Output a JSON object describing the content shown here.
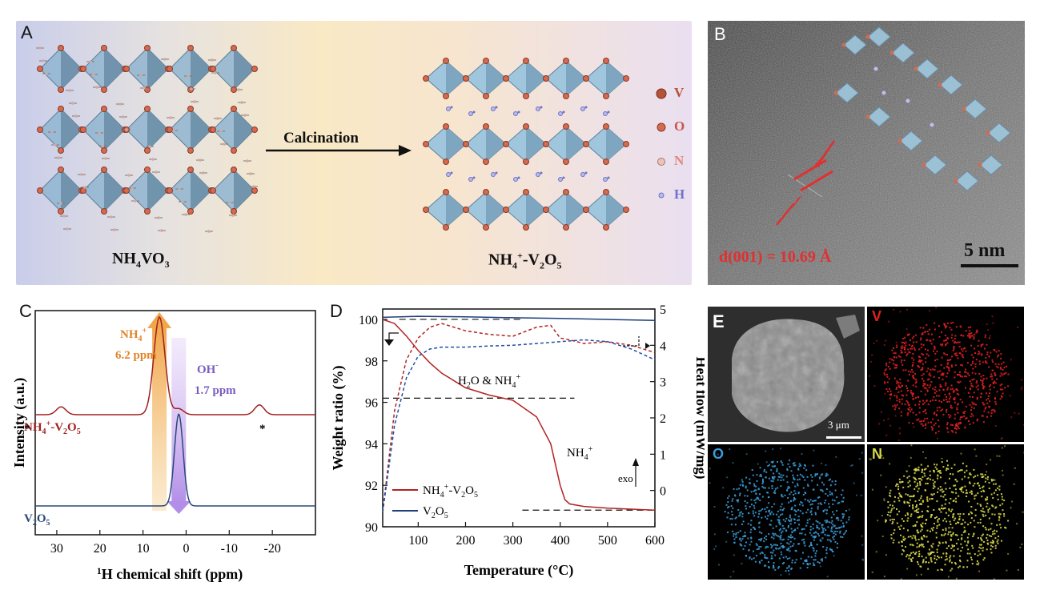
{
  "panel_labels": {
    "a": "A",
    "b": "B",
    "c": "C",
    "d": "D",
    "e": "E"
  },
  "panelA": {
    "left_caption": "NH4VO3",
    "right_caption": "NH4+-V2O5",
    "arrow_label": "Calcination",
    "legend": [
      {
        "symbol": "V",
        "color": "#b5533a"
      },
      {
        "symbol": "O",
        "color": "#d46a4e"
      },
      {
        "symbol": "N",
        "color": "#e7a99a"
      },
      {
        "symbol": "H",
        "color": "#6d73c8"
      }
    ]
  },
  "panelB": {
    "d_spacing_label": "d(001) = 10.69 Å",
    "scale_bar": "5 nm"
  },
  "panelC": {
    "xlabel_sup": "1",
    "xlabel_main": "H chemical shift (ppm)",
    "ylabel": "Intensity (a.u.)",
    "peak_nh4_label": "NH4+",
    "peak_nh4_ppm": "6.2 ppm",
    "peak_oh_label": "OH-",
    "peak_oh_ppm": "1.7 ppm",
    "trace_top_label": "NH4+-V2O5",
    "trace_bottom_label": "V2O5",
    "spinning_sideband": "*"
  },
  "panelD": {
    "xlabel": "Temperature (°C)",
    "ylabel_left": "Weight ratio (%)",
    "ylabel_right": "Heat flow (mW/mg)",
    "annot_h2o": "H2O & NH4+",
    "annot_nh4": "NH4+",
    "annot_exo": "exo",
    "legend": [
      {
        "name": "NH4+-V2O5",
        "color": "#b22222"
      },
      {
        "name": "V2O5",
        "color": "#1f3f7a"
      }
    ]
  },
  "panelE": {
    "scale_bar": "3 μm",
    "maps": [
      {
        "label": "V",
        "color": "#e02020"
      },
      {
        "label": "O",
        "color": "#3a9bd6"
      },
      {
        "label": "N",
        "color": "#d8d84a"
      }
    ]
  },
  "chart_data": [
    {
      "type": "line",
      "title": "",
      "xlabel": "1H chemical shift (ppm)",
      "ylabel": "Intensity (a.u.)",
      "xlim": [
        35,
        -30
      ],
      "x_ticks": [
        30,
        20,
        10,
        0,
        -10,
        -20
      ],
      "series": [
        {
          "name": "NH4+-V2O5",
          "color": "#a02020",
          "peaks": [
            {
              "ppm": 29,
              "height": 0.08
            },
            {
              "ppm": 6.2,
              "height": 1.0
            },
            {
              "ppm": 1.7,
              "height": 0.06
            },
            {
              "ppm": -17,
              "height": 0.1
            }
          ]
        },
        {
          "name": "V2O5",
          "color": "#2a4a7a",
          "peaks": [
            {
              "ppm": 1.7,
              "height": 0.62
            }
          ]
        }
      ]
    },
    {
      "type": "line",
      "title": "",
      "xlabel": "Temperature (°C)",
      "ylabel": "Weight ratio (%)",
      "y2label": "Heat flow (mW/mg)",
      "xlim": [
        25,
        600
      ],
      "ylim": [
        90,
        100.5
      ],
      "y2lim": [
        -1,
        5
      ],
      "x_ticks": [
        100,
        200,
        300,
        400,
        500,
        600
      ],
      "y_ticks": [
        90,
        92,
        94,
        96,
        98,
        100
      ],
      "y2_ticks": [
        0,
        1,
        2,
        3,
        4,
        5
      ],
      "series": [
        {
          "name": "NH4+-V2O5",
          "axis": "left",
          "style": "solid",
          "x": [
            25,
            50,
            75,
            100,
            125,
            150,
            200,
            250,
            300,
            350,
            380,
            400,
            410,
            420,
            450,
            500,
            550,
            600
          ],
          "y": [
            100,
            99.8,
            99.2,
            98.5,
            97.9,
            97.4,
            96.7,
            96.35,
            96.1,
            95.3,
            94.0,
            92.0,
            91.3,
            91.1,
            90.98,
            90.9,
            90.85,
            90.8
          ]
        },
        {
          "name": "V2O5",
          "axis": "left",
          "style": "solid",
          "x": [
            25,
            100,
            200,
            300,
            400,
            500,
            600
          ],
          "y": [
            100.1,
            100.15,
            100.12,
            100.08,
            100.05,
            100.0,
            99.95
          ]
        },
        {
          "name": "NH4+-V2O5 heat flow",
          "axis": "right",
          "style": "dashed",
          "x": [
            25,
            50,
            75,
            100,
            125,
            150,
            200,
            250,
            300,
            350,
            380,
            400,
            420,
            450,
            500,
            550,
            600
          ],
          "y": [
            -0.6,
            2.2,
            3.6,
            4.2,
            4.5,
            4.6,
            4.4,
            4.3,
            4.25,
            4.5,
            4.55,
            4.2,
            4.15,
            4.05,
            4.1,
            4.0,
            3.8
          ]
        },
        {
          "name": "V2O5 heat flow",
          "axis": "right",
          "style": "dashed",
          "x": [
            25,
            50,
            75,
            100,
            125,
            150,
            200,
            250,
            300,
            350,
            400,
            450,
            500,
            550,
            600
          ],
          "y": [
            -0.6,
            1.8,
            3.1,
            3.7,
            3.9,
            3.95,
            3.95,
            3.98,
            4.0,
            4.05,
            4.1,
            4.15,
            4.1,
            3.9,
            3.6
          ]
        }
      ]
    }
  ]
}
